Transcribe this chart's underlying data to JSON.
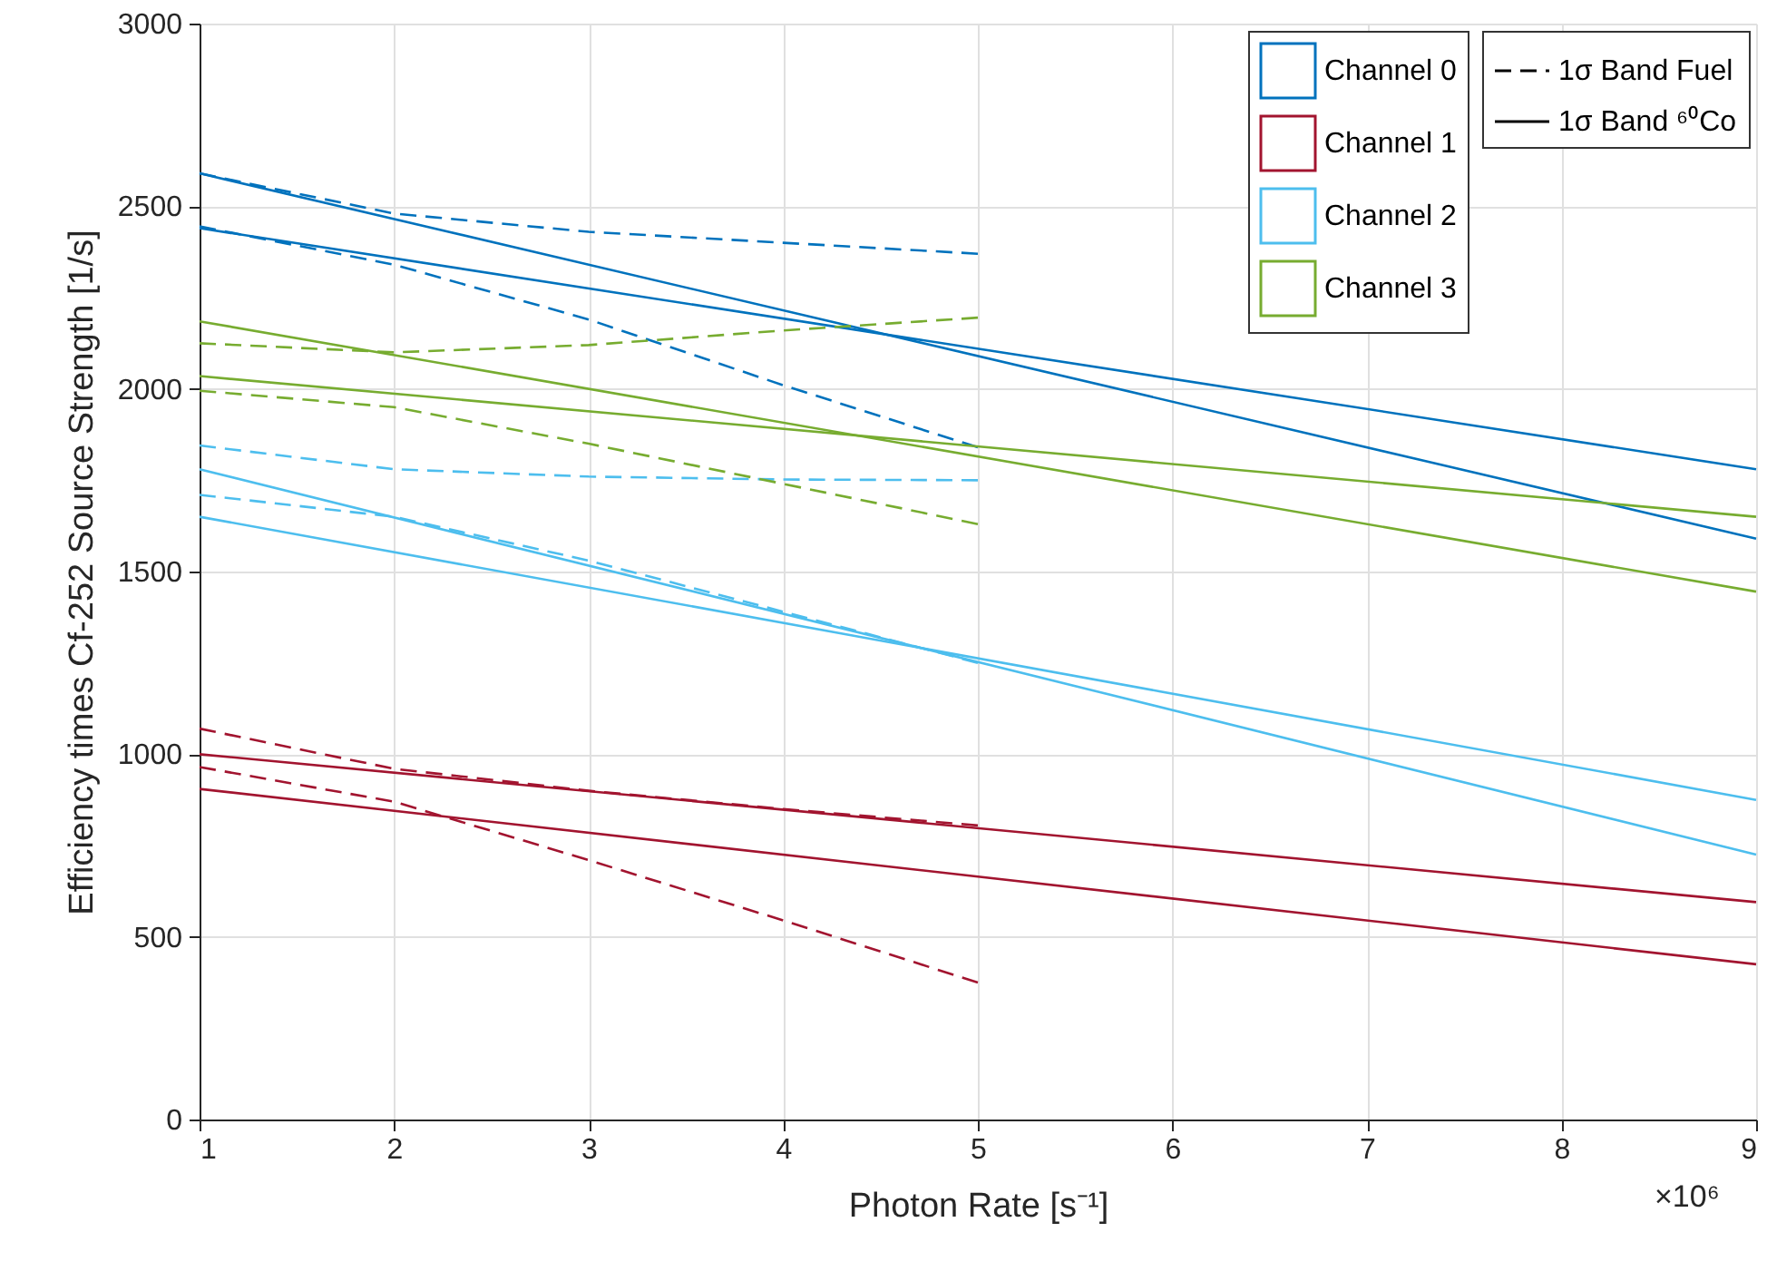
{
  "chart_data": {
    "type": "line",
    "xlabel": "Photon Rate [s⁻¹]",
    "ylabel": "Efficiency times Cf-252 Source Strength [1/s]",
    "xlim": [
      1,
      9
    ],
    "xticks": [
      1,
      2,
      3,
      4,
      5,
      6,
      7,
      8,
      9
    ],
    "ylim": [
      0,
      3000
    ],
    "yticks": [
      0,
      500,
      1000,
      1500,
      2000,
      2500,
      3000
    ],
    "grid": true,
    "legend": "top right",
    "annotations": [
      "×10⁶",
      "1σ Band Fuel",
      "1σ Band ⁶⁰Co"
    ],
    "series": [
      {
        "name": "Channel 0",
        "color": "#0072bd",
        "line_style": "solid",
        "x": [
          1,
          9
        ],
        "values": [
          2590,
          1590
        ]
      },
      {
        "color": "#0072bd",
        "line_style": "solid",
        "x": [
          1,
          9
        ],
        "values": [
          2440,
          1780
        ]
      },
      {
        "color": "#0072bd",
        "line_style": "dashed",
        "x": [
          1,
          2,
          3,
          4,
          5
        ],
        "values": [
          2590,
          2480,
          2430,
          2400,
          2370
        ]
      },
      {
        "color": "#0072bd",
        "line_style": "dashed",
        "x": [
          1,
          2,
          3,
          4,
          5
        ],
        "values": [
          2445,
          2340,
          2190,
          2010,
          1840
        ]
      },
      {
        "name": "Channel 1",
        "color": "#a2142f",
        "line_style": "solid",
        "x": [
          1,
          9
        ],
        "values": [
          1000,
          595
        ]
      },
      {
        "color": "#a2142f",
        "line_style": "solid",
        "x": [
          1,
          9
        ],
        "values": [
          905,
          425
        ]
      },
      {
        "color": "#a2142f",
        "line_style": "dashed",
        "x": [
          1,
          2,
          3,
          4,
          5
        ],
        "values": [
          1070,
          960,
          900,
          850,
          805
        ]
      },
      {
        "color": "#a2142f",
        "line_style": "dashed",
        "x": [
          1,
          2,
          3,
          4,
          5
        ],
        "values": [
          965,
          870,
          710,
          545,
          375
        ]
      },
      {
        "name": "Channel 2",
        "color": "#4dbeee",
        "line_style": "solid",
        "x": [
          1,
          9
        ],
        "values": [
          1780,
          725
        ]
      },
      {
        "color": "#4dbeee",
        "line_style": "solid",
        "x": [
          1,
          9
        ],
        "values": [
          1650,
          875
        ]
      },
      {
        "color": "#4dbeee",
        "line_style": "dashed",
        "x": [
          1,
          2,
          3,
          4,
          5
        ],
        "values": [
          1845,
          1780,
          1760,
          1752,
          1750
        ]
      },
      {
        "color": "#4dbeee",
        "line_style": "dashed",
        "x": [
          1,
          2,
          3,
          4,
          5
        ],
        "values": [
          1710,
          1650,
          1530,
          1390,
          1250
        ]
      },
      {
        "name": "Channel 3",
        "color": "#77ac30",
        "line_style": "solid",
        "x": [
          1,
          9
        ],
        "values": [
          2185,
          1445
        ]
      },
      {
        "color": "#77ac30",
        "line_style": "solid",
        "x": [
          1,
          9
        ],
        "values": [
          2035,
          1650
        ]
      },
      {
        "color": "#77ac30",
        "line_style": "dashed",
        "x": [
          1,
          2,
          3,
          4,
          5
        ],
        "values": [
          2125,
          2100,
          2120,
          2160,
          2195
        ]
      },
      {
        "color": "#77ac30",
        "line_style": "dashed",
        "x": [
          1,
          2,
          3,
          4,
          5
        ],
        "values": [
          1995,
          1950,
          1850,
          1740,
          1630
        ]
      }
    ]
  }
}
